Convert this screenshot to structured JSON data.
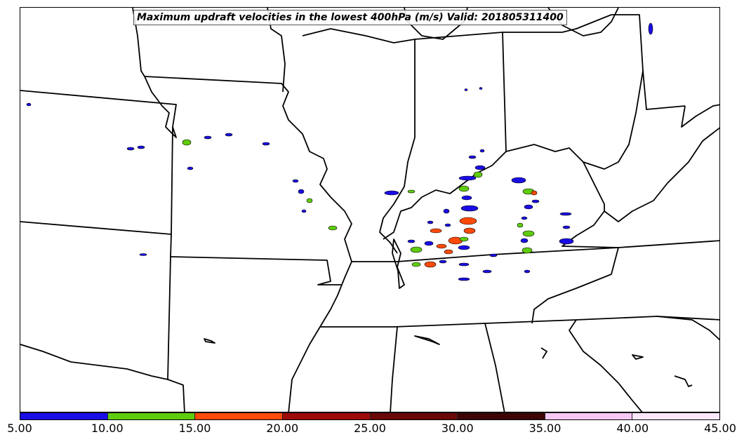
{
  "title": "Maximum updraft velocities in the lowest 400hPa (m/s) Valid: 201805311400",
  "colorbar": {
    "colors": [
      "#1a0de6",
      "#5fcc0e",
      "#ff4a0a",
      "#9c0a0a",
      "#6b0808",
      "#3d0505",
      "#f8c8f5",
      "#fde8fb"
    ],
    "ticks": [
      "5.00",
      "10.00",
      "15.00",
      "20.00",
      "25.00",
      "30.00",
      "35.00",
      "40.00",
      "45.00"
    ]
  },
  "map": {
    "projection": "Lambert conformal",
    "region": "Central and eastern United States",
    "boundary_color": "#000000"
  }
}
